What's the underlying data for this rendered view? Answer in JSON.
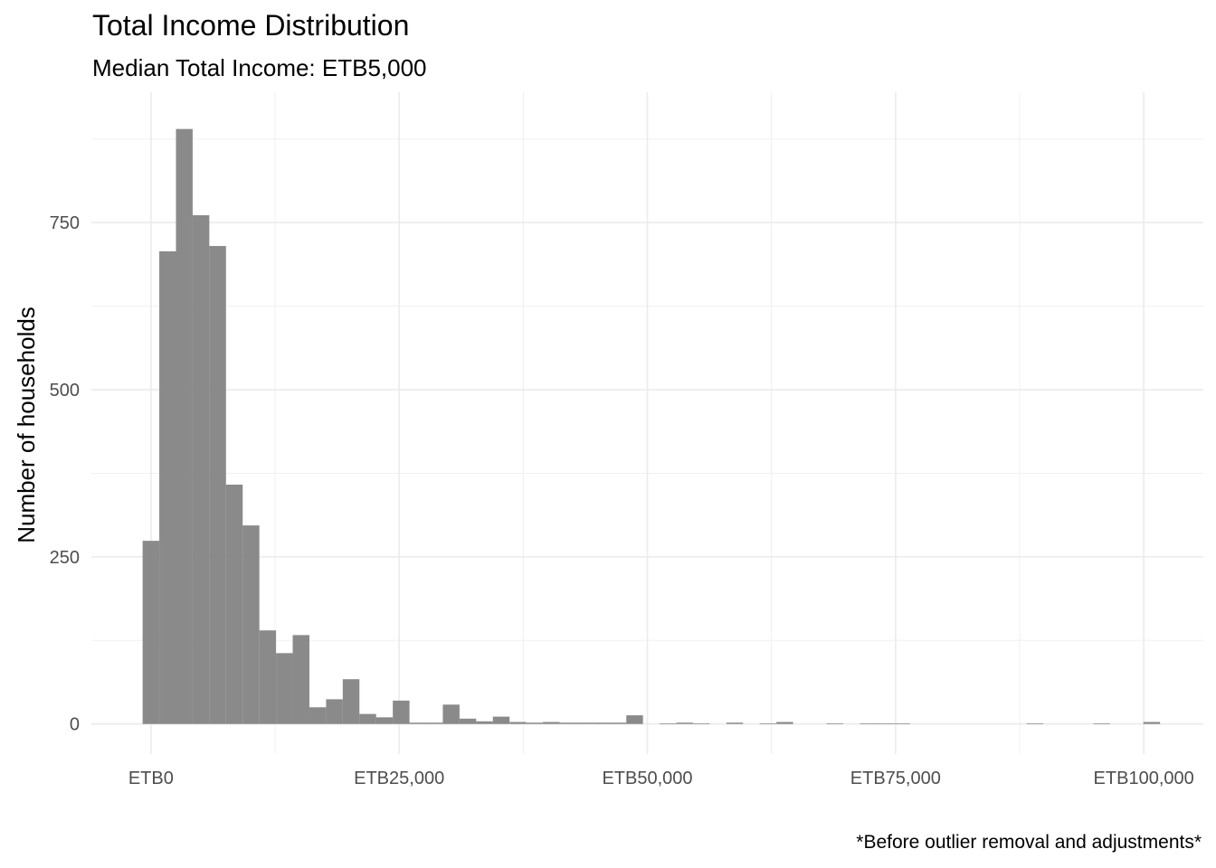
{
  "chart_data": {
    "type": "bar",
    "title": "Total Income Distribution",
    "subtitle": "Median Total Income: ETB5,000",
    "caption": "*Before outlier removal and adjustments*",
    "xlabel": "",
    "ylabel": "Number of households",
    "x_tick_values": [
      0,
      25000,
      50000,
      75000,
      100000
    ],
    "x_tick_labels": [
      "ETB0",
      "ETB25,000",
      "ETB50,000",
      "ETB75,000",
      "ETB100,000"
    ],
    "y_tick_values": [
      0,
      250,
      500,
      750
    ],
    "y_tick_labels": [
      "0",
      "250",
      "500",
      "750"
    ],
    "xlim": [
      -6000,
      106000
    ],
    "ylim": [
      -45,
      945
    ],
    "bin_width": 1680,
    "grid": true,
    "bar_color": "#808080",
    "bins_center": [
      0,
      1680,
      3360,
      5040,
      6720,
      8400,
      10080,
      11760,
      13440,
      15120,
      16800,
      18480,
      20160,
      21840,
      23520,
      25200,
      26880,
      28560,
      30240,
      31920,
      33600,
      35280,
      36960,
      38640,
      40320,
      42000,
      43680,
      45360,
      47040,
      48720,
      50400,
      52080,
      53760,
      55440,
      57120,
      58800,
      60480,
      62160,
      63840,
      65520,
      67200,
      68880,
      70560,
      72240,
      73920,
      75600,
      77280,
      78960,
      80640,
      82320,
      84000,
      85680,
      87360,
      89040,
      90720,
      92400,
      94080,
      95760,
      97440,
      99120,
      100800
    ],
    "values": [
      274,
      707,
      890,
      761,
      715,
      358,
      297,
      140,
      106,
      133,
      25,
      37,
      67,
      15,
      10,
      35,
      2,
      2,
      29,
      8,
      4,
      11,
      3,
      2,
      3,
      2,
      2,
      2,
      2,
      13,
      0,
      1,
      2,
      1,
      0,
      2,
      0,
      1,
      3,
      0,
      0,
      1,
      0,
      1,
      1,
      1,
      0,
      0,
      0,
      0,
      0,
      0,
      0,
      1,
      0,
      0,
      0,
      1,
      0,
      0,
      3
    ]
  }
}
